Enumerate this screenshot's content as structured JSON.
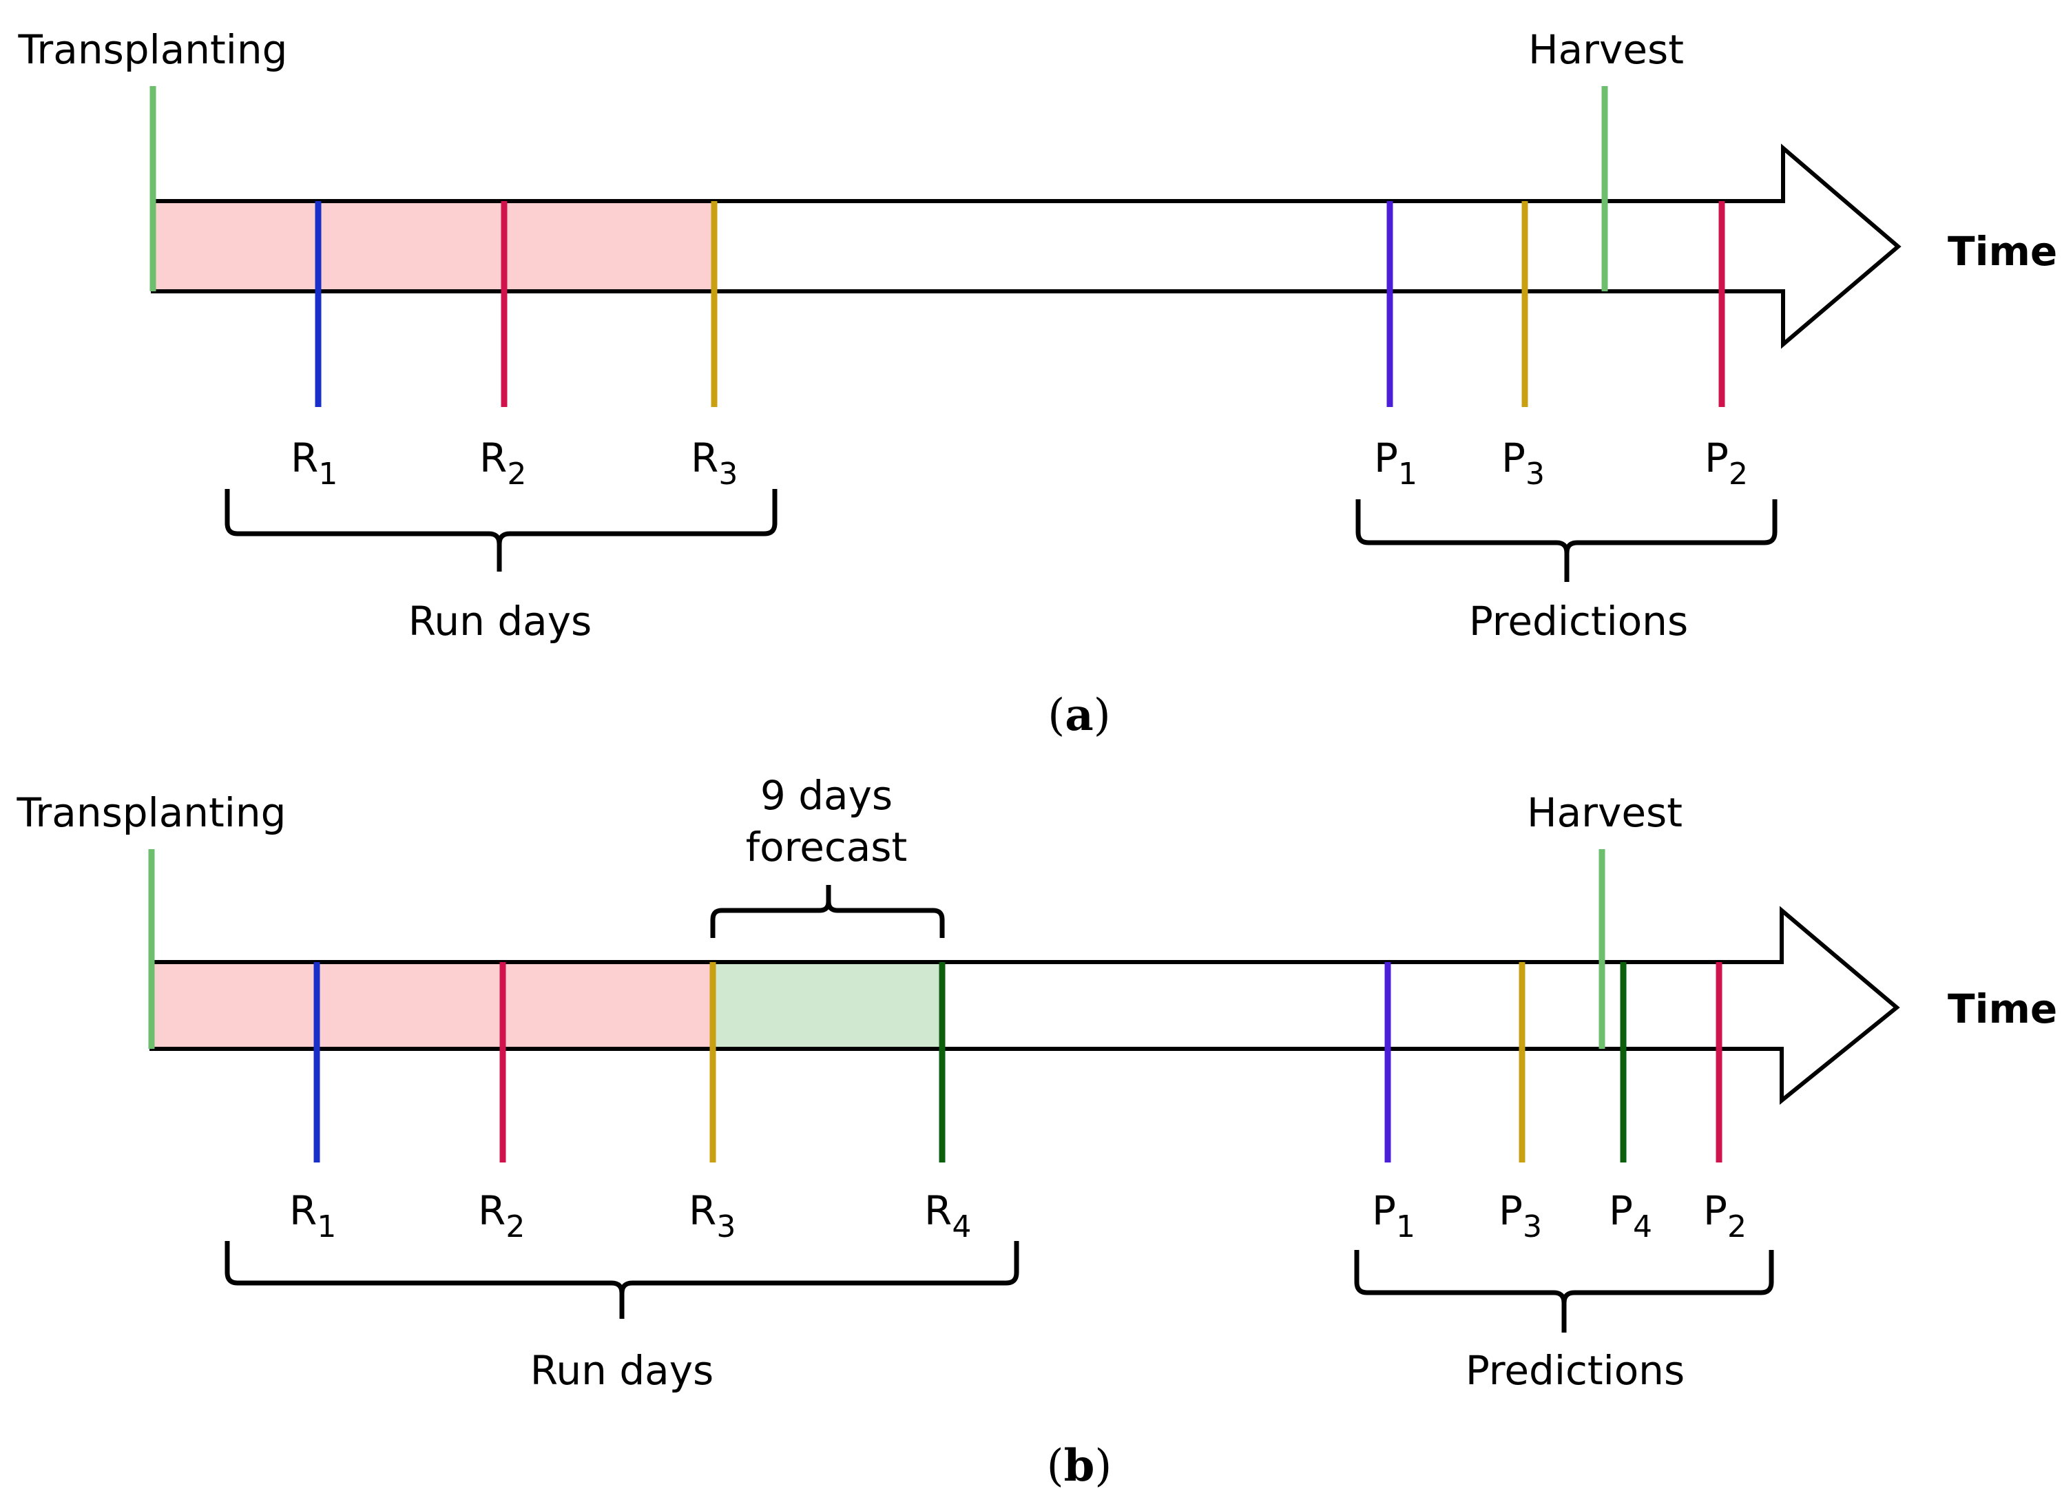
{
  "colors": {
    "green_marker": "#6dbe6d",
    "run_fill": "#fcd0d0",
    "forecast_fill": "#cfe8cf",
    "c1": "#1a2fc8",
    "c2": "#d0134d",
    "c3": "#c9a012",
    "c4": "#0d5e0d",
    "p1": "#4b1fd8"
  },
  "panel_a": {
    "start_label": "Transplanting",
    "end_label": "Harvest",
    "axis_label": "Time",
    "markers": [
      {
        "id": "R1",
        "base": "R",
        "num": "1"
      },
      {
        "id": "R2",
        "base": "R",
        "num": "2"
      },
      {
        "id": "R3",
        "base": "R",
        "num": "3"
      },
      {
        "id": "P1",
        "base": "P",
        "num": "1"
      },
      {
        "id": "P3",
        "base": "P",
        "num": "3"
      },
      {
        "id": "P2",
        "base": "P",
        "num": "2"
      }
    ],
    "run_group_label": "Run days",
    "pred_group_label": "Predictions",
    "caption_open": "(",
    "caption_letter": "a",
    "caption_close": ")"
  },
  "panel_b": {
    "start_label": "Transplanting",
    "end_label": "Harvest",
    "axis_label": "Time",
    "forecast_line1": "9 days",
    "forecast_line2": "forecast",
    "markers": [
      {
        "id": "R1",
        "base": "R",
        "num": "1"
      },
      {
        "id": "R2",
        "base": "R",
        "num": "2"
      },
      {
        "id": "R3",
        "base": "R",
        "num": "3"
      },
      {
        "id": "R4",
        "base": "R",
        "num": "4"
      },
      {
        "id": "P1",
        "base": "P",
        "num": "1"
      },
      {
        "id": "P3",
        "base": "P",
        "num": "3"
      },
      {
        "id": "P4",
        "base": "P",
        "num": "4"
      },
      {
        "id": "P2",
        "base": "P",
        "num": "2"
      }
    ],
    "run_group_label": "Run days",
    "pred_group_label": "Predictions",
    "caption_open": "(",
    "caption_letter": "b",
    "caption_close": ")"
  }
}
